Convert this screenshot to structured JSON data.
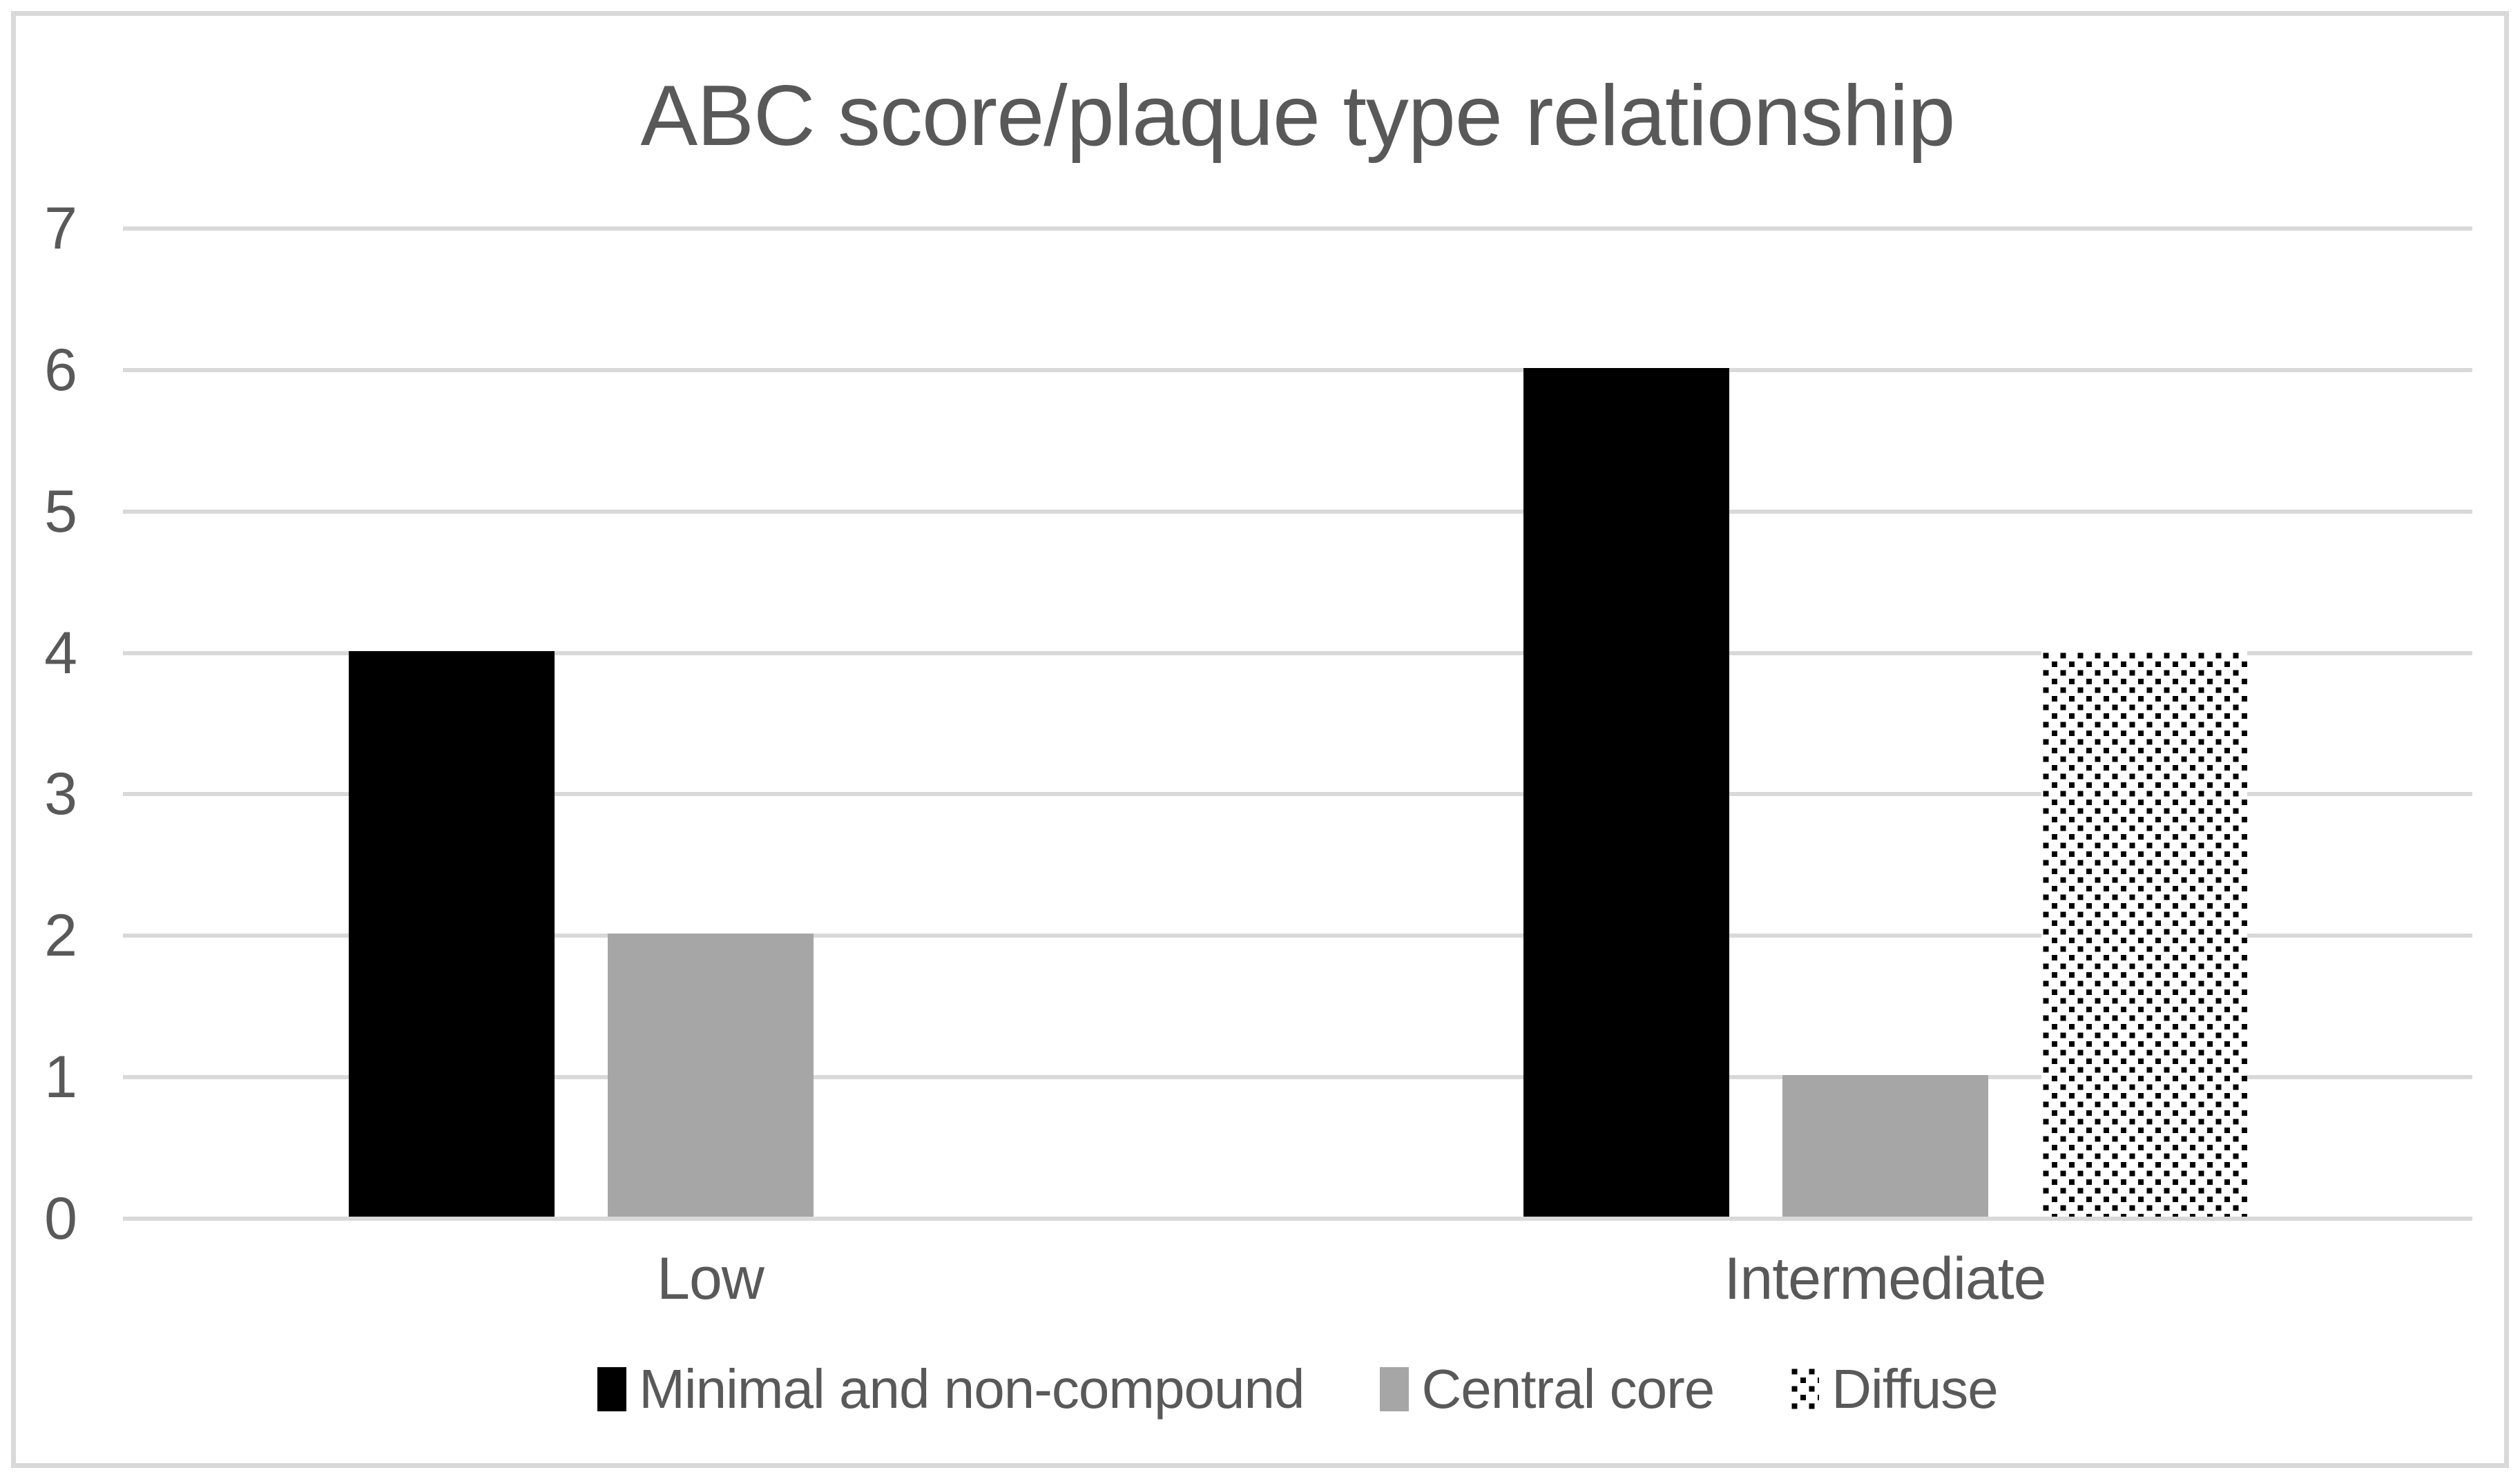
{
  "chart_data": {
    "type": "bar",
    "title": "ABC score/plaque type relationship",
    "categories": [
      "Low",
      "Intermediate"
    ],
    "series": [
      {
        "name": "Minimal and non-compound",
        "values": [
          4,
          6
        ],
        "fill": "solid",
        "color": "#000000"
      },
      {
        "name": "Central core",
        "values": [
          2,
          1
        ],
        "fill": "solid",
        "color": "#A6A6A6"
      },
      {
        "name": "Diffuse",
        "values": [
          0,
          4
        ],
        "fill": "dotted",
        "color": "#000000",
        "pattern_background": "#FFFFFF"
      }
    ],
    "xlabel": "",
    "ylabel": "",
    "ylim": [
      0,
      7
    ],
    "yticks": [
      0,
      1,
      2,
      3,
      4,
      5,
      6,
      7
    ],
    "grid": true,
    "gridline_color": "#D9D9D9",
    "frame_color": "#D9D9D9",
    "text_color": "#595959",
    "background_color": "#FFFFFF",
    "legend_position": "bottom"
  }
}
